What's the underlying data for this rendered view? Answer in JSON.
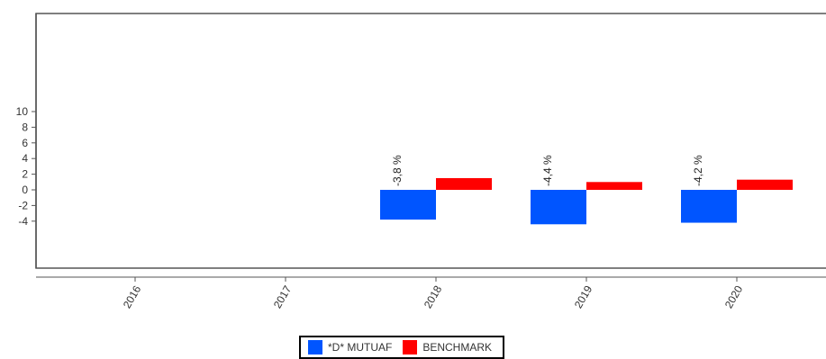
{
  "chart_data": {
    "type": "bar",
    "categories": [
      "2016",
      "2017",
      "2018",
      "2019",
      "2020"
    ],
    "series": [
      {
        "name": "*D* MUTUAF",
        "color": "#0055ff",
        "values": [
          null,
          null,
          -3.8,
          -4.4,
          -4.2
        ],
        "labels": [
          "",
          "",
          "-3,8 %",
          "-4,4 %",
          "-4,2 %"
        ]
      },
      {
        "name": "BENCHMARK",
        "color": "#ff0000",
        "values": [
          null,
          null,
          1.5,
          1.0,
          1.3
        ]
      }
    ],
    "yticks": [
      "-4",
      "-2",
      "0",
      "2",
      "4",
      "6",
      "8",
      "10"
    ],
    "ylim": [
      -5,
      11
    ],
    "grid": false,
    "legend_position": "bottom-center"
  }
}
